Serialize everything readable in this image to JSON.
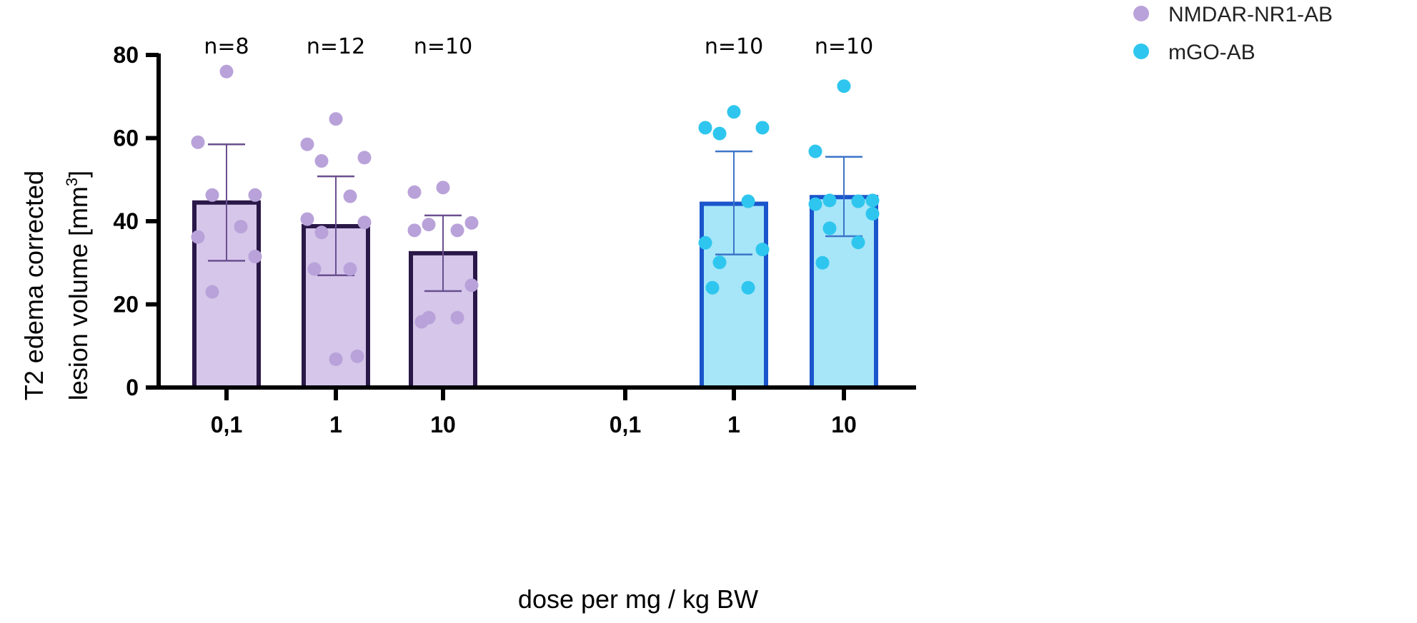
{
  "chart_data": {
    "type": "bar",
    "title": "",
    "ylabel_line1": "T2 edema corrected",
    "ylabel_line2": "lesion volume [mm",
    "ylabel_sup": "3",
    "ylabel_end": "]",
    "xlabel": "dose per mg / kg BW",
    "ylim": [
      0,
      80
    ],
    "yticks": [
      0,
      20,
      40,
      60,
      80
    ],
    "categories": [
      "0,1",
      "1",
      "10",
      "0,1",
      "1",
      "10"
    ],
    "series": [
      {
        "name": "NMDAR-NR1-AB",
        "color": "#b9a2d9",
        "bar_fill": "#d5c6ea",
        "bar_edge": "#2a1848",
        "groups": [
          {
            "category_index": 0,
            "n_label": "n=8",
            "mean": 44.5,
            "sd_low": 30.5,
            "sd_high": 58.5,
            "points": [
              76,
              59,
              46.3,
              46.3,
              38.7,
              36.2,
              31.5,
              23
            ]
          },
          {
            "category_index": 1,
            "n_label": "n=12",
            "mean": 38.8,
            "sd_low": 27,
            "sd_high": 50.8,
            "points": [
              64.6,
              58.5,
              55.3,
              54.5,
              46,
              40.5,
              39.7,
              37.3,
              28.5,
              28.5,
              7.5,
              6.8
            ]
          },
          {
            "category_index": 2,
            "n_label": "n=10",
            "mean": 32.3,
            "sd_low": 23.2,
            "sd_high": 41.4,
            "points": [
              48.1,
              47,
              39.6,
              39.2,
              37.8,
              37.8,
              24.6,
              16.8,
              16.8,
              15.8
            ]
          }
        ]
      },
      {
        "name": "mGO-AB",
        "color": "#2ec6ee",
        "bar_fill": "#a6e6f8",
        "bar_edge": "#1a55cc",
        "groups": [
          {
            "category_index": 4,
            "n_label": "n=10",
            "mean": 44.2,
            "sd_low": 32,
            "sd_high": 56.8,
            "points": [
              66.3,
              62.5,
              62.5,
              61.1,
              44.8,
              34.8,
              33.2,
              30.1,
              24,
              24
            ]
          },
          {
            "category_index": 5,
            "n_label": "n=10",
            "mean": 45.8,
            "sd_low": 36.4,
            "sd_high": 55.5,
            "points": [
              72.5,
              56.8,
              45,
              45,
              44.8,
              44.1,
              41.8,
              38.3,
              34.9,
              30
            ]
          }
        ]
      }
    ],
    "legend": [
      {
        "label": "NMDAR-NR1-AB",
        "color": "#b9a2d9"
      },
      {
        "label": "mGO-AB",
        "color": "#2ec6ee"
      }
    ]
  }
}
